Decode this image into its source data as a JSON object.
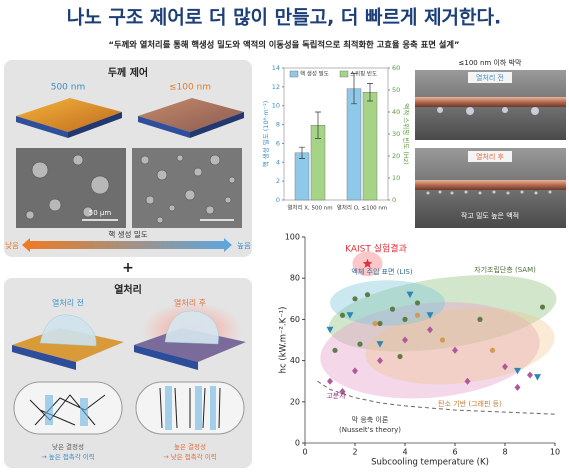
{
  "header": {
    "title": "나노 구조 제어로 더 많이 만들고, 더 빠르게 제거한다.",
    "subtitle": "“두께와 열처리를 통해 핵생성 밀도와 액적의 이동성을 독립적으로 최적화한 고효율 응축 표면 설계”"
  },
  "thickness_panel": {
    "title": "두께 제어",
    "left_label": "500 nm",
    "right_label": "≤100 nm",
    "scale_bar": "50 μm",
    "axis_label": "핵 생성 밀도",
    "low": "낮음",
    "high": "높음"
  },
  "plus": "+",
  "heat_panel": {
    "title": "열처리",
    "before": "열처리 전",
    "after": "열처리 후",
    "before_caption_1": "낮은 결정성",
    "before_caption_2": "→ 높은 접촉각 이력",
    "after_caption_1": "높은 결정성",
    "after_caption_2": "→ 낮은 접촉각 이력"
  },
  "photo_panel": {
    "title": "≤100 nm 이하 박막",
    "before": "열처리 전",
    "after": "열처리 후",
    "caption": "작고 밀도 높은 액적"
  },
  "chart_data": [
    {
      "type": "bar",
      "categories": [
        "열처리 X, 500 nm",
        "열처리 O, ≤100 nm"
      ],
      "ylabel": "핵 생성 밀도 (10⁹·m⁻²)",
      "y2label": "액적 스위핑 빈도 (Hz)",
      "ylim": [
        0,
        14
      ],
      "yticks": [
        0,
        2,
        4,
        6,
        8,
        10,
        12,
        14
      ],
      "y2lim": [
        0,
        60
      ],
      "y2ticks": [
        0,
        10,
        20,
        30,
        40,
        50,
        60
      ],
      "legend": "top",
      "series": [
        {
          "name": "핵 생성 밀도",
          "color": "#8ec9ea",
          "values": [
            5,
            11.8
          ],
          "errors": [
            0.6,
            1.6
          ]
        },
        {
          "name": "스위핑 빈도",
          "color": "#a6d486",
          "axis": "y2",
          "values": [
            34,
            49
          ],
          "errors": [
            6,
            4
          ]
        }
      ]
    },
    {
      "type": "scatter",
      "xlabel": "Subcooling temperature (K)",
      "ylabel": "hc (kW.m⁻².K⁻¹)",
      "xlim": [
        0,
        10
      ],
      "ylim": [
        0,
        100
      ],
      "xticks": [
        0,
        2,
        4,
        6,
        8,
        10
      ],
      "yticks": [
        0,
        20,
        40,
        60,
        80,
        100
      ],
      "note": "(Nusselt's theory)",
      "series": [
        {
          "name": "KAIST 실험결과",
          "color": "#e0303a",
          "marker": "star",
          "x": [
            2.5
          ],
          "values": [
            87
          ]
        },
        {
          "name": "액체 주입 표면 (LIS)",
          "color": "#2f86b5",
          "marker": "triangle",
          "x": [
            1,
            1.8,
            3,
            4.2,
            5,
            8.5,
            9.3
          ],
          "values": [
            55,
            62,
            48,
            72,
            62,
            35,
            32
          ]
        },
        {
          "name": "자기조립단층 (SAM)",
          "color": "#5d7d45",
          "marker": "circle",
          "x": [
            1.2,
            1.5,
            2,
            2.2,
            2.5,
            3,
            3.5,
            3.8,
            4,
            4.5,
            7,
            9.5
          ],
          "values": [
            45,
            62,
            70,
            48,
            72,
            58,
            65,
            42,
            60,
            68,
            60,
            66
          ]
        },
        {
          "name": "고분자",
          "color": "#b0589e",
          "marker": "diamond",
          "x": [
            1,
            1.5,
            2,
            3,
            4,
            5,
            6,
            6.5,
            8,
            8.5,
            9
          ],
          "values": [
            30,
            25,
            35,
            40,
            50,
            55,
            45,
            30,
            37,
            27,
            33
          ]
        },
        {
          "name": "탄소 기반 (그래핀 등)",
          "color": "#d39a55",
          "marker": "circle",
          "x": [
            2.8,
            4.5,
            5.5,
            7.5
          ],
          "values": [
            58,
            62,
            50,
            45
          ]
        },
        {
          "name": "막 응축 이론",
          "color": "#666666",
          "marker": "dashed-line",
          "x": [
            0.5,
            1,
            2,
            3,
            4,
            5,
            6,
            7,
            8,
            9,
            10
          ],
          "values": [
            30,
            26,
            22,
            19.5,
            18,
            17,
            16,
            15.5,
            15,
            14.5,
            14
          ]
        }
      ]
    }
  ]
}
